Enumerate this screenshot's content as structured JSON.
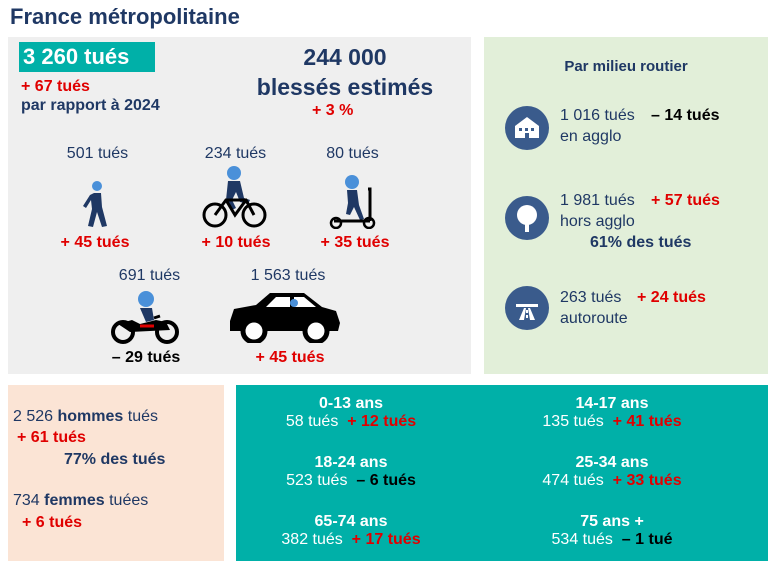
{
  "title": "France métropolitaine",
  "total": {
    "killed": "3 260 tués",
    "delta": "+ 67 tués",
    "compare": "par rapport à 2024"
  },
  "injured": {
    "line1": "244 000",
    "line2": "blessés estimés",
    "delta": "+ 3 %"
  },
  "users": {
    "pedestrian": {
      "count": "501 tués",
      "delta": "+ 45 tués"
    },
    "cyclist": {
      "count": "234 tués",
      "delta": "+ 10 tués"
    },
    "scooter": {
      "count": "80 tués",
      "delta": "+ 35 tués"
    },
    "motorcycle": {
      "count": "691 tués",
      "delta": "– 29 tués"
    },
    "car": {
      "count": "1 563 tués",
      "delta": "+ 45 tués"
    }
  },
  "milieu": {
    "heading": "Par milieu routier",
    "agglo": {
      "count": "1 016 tués",
      "delta": "– 14 tués",
      "label": "en agglo"
    },
    "hors": {
      "count": "1 981 tués",
      "delta": "+ 57 tués",
      "label": "hors agglo",
      "share": "61% des tués"
    },
    "autoroute": {
      "count": "263 tués",
      "delta": "+ 24 tués",
      "label": "autoroute"
    }
  },
  "gender": {
    "men_count": "2 526",
    "men_word": "hommes",
    "men_suffix": "tués",
    "men_delta": "+ 61 tués",
    "men_share": "77% des tués",
    "women_count": "734",
    "women_word": "femmes",
    "women_suffix": "tuées",
    "women_delta": "+ 6 tués"
  },
  "ages": [
    {
      "label": "0-13 ans",
      "count": "58 tués",
      "delta": "+ 12 tués"
    },
    {
      "label": "14-17 ans",
      "count": "135 tués",
      "delta": "+ 41 tués"
    },
    {
      "label": "18-24 ans",
      "count": "523 tués",
      "delta": "– 6 tués"
    },
    {
      "label": "25-34 ans",
      "count": "474 tués",
      "delta": "+ 33 tués"
    },
    {
      "label": "65-74 ans",
      "count": "382 tués",
      "delta": "+ 17 tués"
    },
    {
      "label": "75 ans +",
      "count": "534 tués",
      "delta": "– 1 tué"
    }
  ],
  "colors": {
    "navy": "#1f3864",
    "teal": "#00b0a8",
    "red": "#e00000",
    "green_panel": "#e2efd9",
    "peach_panel": "#fbe4d5",
    "grey_panel": "#efefef",
    "icon_blue": "#3a5b8c"
  },
  "icons": [
    "pedestrian-icon",
    "bicycle-icon",
    "scooter-icon",
    "motorcycle-icon",
    "car-icon",
    "building-icon",
    "tree-icon",
    "highway-icon"
  ]
}
